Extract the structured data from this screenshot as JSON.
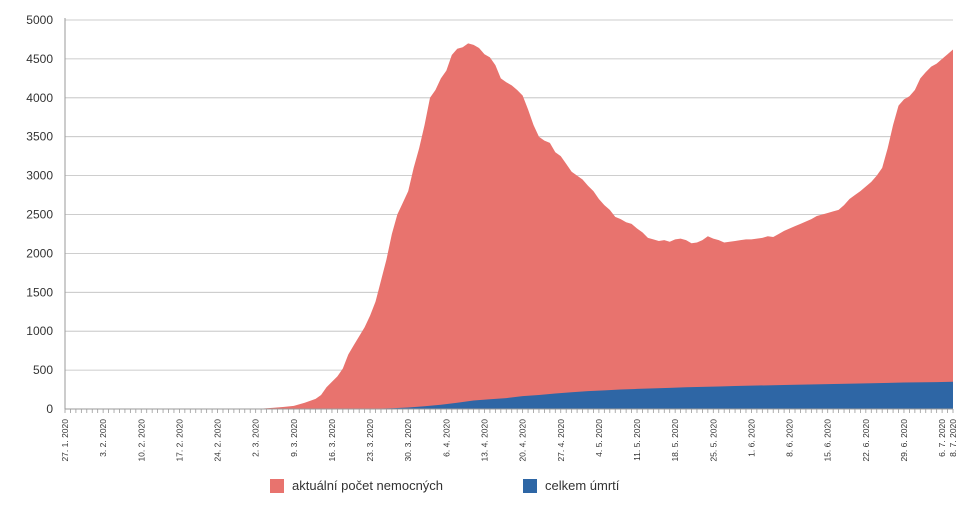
{
  "chart_data": {
    "type": "area",
    "stacked": false,
    "title": "",
    "xlabel": "",
    "ylabel": "",
    "ylim": [
      0,
      5000
    ],
    "y_ticks": [
      0,
      500,
      1000,
      1500,
      2000,
      2500,
      3000,
      3500,
      4000,
      4500,
      5000
    ],
    "grid": "horizontal",
    "legend_position": "bottom-center",
    "x_date_range": [
      "27.1.2020",
      "8.7.2020"
    ],
    "x_tick_labels": [
      "27. 1. 2020",
      "3. 2. 2020",
      "10. 2. 2020",
      "17. 2. 2020",
      "24. 2. 2020",
      "2. 3. 2020",
      "9. 3. 2020",
      "16. 3. 2020",
      "23. 3. 2020",
      "30. 3. 2020",
      "6. 4. 2020",
      "13. 4. 2020",
      "20. 4. 2020",
      "27. 4. 2020",
      "4. 5. 2020",
      "11. 5. 2020",
      "18. 5. 2020",
      "25. 5. 2020",
      "1. 6. 2020",
      "8. 6. 2020",
      "15. 6. 2020",
      "22. 6. 2020",
      "29. 6. 2020",
      "6. 7. 2020",
      "8. 7. 2020"
    ],
    "series": [
      {
        "name": "aktuální počet nemocných",
        "color": "#e8736e",
        "points": [
          [
            "27.1.2020",
            0
          ],
          [
            "1.3.2020",
            0
          ],
          [
            "3.3.2020",
            5
          ],
          [
            "5.3.2020",
            15
          ],
          [
            "7.3.2020",
            25
          ],
          [
            "9.3.2020",
            40
          ],
          [
            "11.3.2020",
            80
          ],
          [
            "13.3.2020",
            130
          ],
          [
            "14.3.2020",
            180
          ],
          [
            "15.3.2020",
            280
          ],
          [
            "17.3.2020",
            420
          ],
          [
            "18.3.2020",
            520
          ],
          [
            "19.3.2020",
            700
          ],
          [
            "20.3.2020",
            820
          ],
          [
            "22.3.2020",
            1050
          ],
          [
            "23.3.2020",
            1200
          ],
          [
            "24.3.2020",
            1380
          ],
          [
            "25.3.2020",
            1650
          ],
          [
            "26.3.2020",
            1920
          ],
          [
            "27.3.2020",
            2250
          ],
          [
            "28.3.2020",
            2500
          ],
          [
            "29.3.2020",
            2650
          ],
          [
            "30.3.2020",
            2800
          ],
          [
            "31.3.2020",
            3100
          ],
          [
            "1.4.2020",
            3350
          ],
          [
            "2.4.2020",
            3650
          ],
          [
            "3.4.2020",
            4000
          ],
          [
            "4.4.2020",
            4100
          ],
          [
            "5.4.2020",
            4250
          ],
          [
            "6.4.2020",
            4350
          ],
          [
            "7.4.2020",
            4550
          ],
          [
            "8.4.2020",
            4630
          ],
          [
            "9.4.2020",
            4650
          ],
          [
            "10.4.2020",
            4700
          ],
          [
            "11.4.2020",
            4680
          ],
          [
            "12.4.2020",
            4640
          ],
          [
            "13.4.2020",
            4560
          ],
          [
            "14.4.2020",
            4520
          ],
          [
            "15.4.2020",
            4420
          ],
          [
            "16.4.2020",
            4250
          ],
          [
            "17.4.2020",
            4200
          ],
          [
            "18.4.2020",
            4160
          ],
          [
            "19.4.2020",
            4100
          ],
          [
            "20.4.2020",
            4030
          ],
          [
            "21.4.2020",
            3850
          ],
          [
            "22.4.2020",
            3650
          ],
          [
            "23.4.2020",
            3500
          ],
          [
            "24.4.2020",
            3450
          ],
          [
            "25.4.2020",
            3420
          ],
          [
            "26.4.2020",
            3300
          ],
          [
            "27.4.2020",
            3250
          ],
          [
            "28.4.2020",
            3150
          ],
          [
            "29.4.2020",
            3050
          ],
          [
            "30.4.2020",
            3000
          ],
          [
            "1.5.2020",
            2950
          ],
          [
            "2.5.2020",
            2870
          ],
          [
            "3.5.2020",
            2800
          ],
          [
            "4.5.2020",
            2700
          ],
          [
            "5.5.2020",
            2620
          ],
          [
            "6.5.2020",
            2560
          ],
          [
            "7.5.2020",
            2470
          ],
          [
            "8.5.2020",
            2440
          ],
          [
            "9.5.2020",
            2400
          ],
          [
            "10.5.2020",
            2380
          ],
          [
            "11.5.2020",
            2320
          ],
          [
            "12.5.2020",
            2270
          ],
          [
            "13.5.2020",
            2200
          ],
          [
            "14.5.2020",
            2180
          ],
          [
            "15.5.2020",
            2160
          ],
          [
            "16.5.2020",
            2170
          ],
          [
            "17.5.2020",
            2150
          ],
          [
            "18.5.2020",
            2180
          ],
          [
            "19.5.2020",
            2190
          ],
          [
            "20.5.2020",
            2170
          ],
          [
            "21.5.2020",
            2130
          ],
          [
            "22.5.2020",
            2140
          ],
          [
            "23.5.2020",
            2170
          ],
          [
            "24.5.2020",
            2220
          ],
          [
            "25.5.2020",
            2190
          ],
          [
            "26.5.2020",
            2170
          ],
          [
            "27.5.2020",
            2140
          ],
          [
            "28.5.2020",
            2150
          ],
          [
            "29.5.2020",
            2160
          ],
          [
            "30.5.2020",
            2170
          ],
          [
            "31.5.2020",
            2180
          ],
          [
            "1.6.2020",
            2180
          ],
          [
            "2.6.2020",
            2190
          ],
          [
            "3.6.2020",
            2200
          ],
          [
            "4.6.2020",
            2220
          ],
          [
            "5.6.2020",
            2210
          ],
          [
            "6.6.2020",
            2250
          ],
          [
            "7.6.2020",
            2290
          ],
          [
            "8.6.2020",
            2320
          ],
          [
            "9.6.2020",
            2350
          ],
          [
            "10.6.2020",
            2380
          ],
          [
            "11.6.2020",
            2410
          ],
          [
            "12.6.2020",
            2440
          ],
          [
            "13.6.2020",
            2480
          ],
          [
            "14.6.2020",
            2500
          ],
          [
            "15.6.2020",
            2520
          ],
          [
            "16.6.2020",
            2540
          ],
          [
            "17.6.2020",
            2560
          ],
          [
            "18.6.2020",
            2620
          ],
          [
            "19.6.2020",
            2700
          ],
          [
            "20.6.2020",
            2750
          ],
          [
            "21.6.2020",
            2800
          ],
          [
            "22.6.2020",
            2860
          ],
          [
            "23.6.2020",
            2920
          ],
          [
            "24.6.2020",
            3000
          ],
          [
            "25.6.2020",
            3100
          ],
          [
            "26.6.2020",
            3350
          ],
          [
            "27.6.2020",
            3650
          ],
          [
            "28.6.2020",
            3900
          ],
          [
            "29.6.2020",
            3980
          ],
          [
            "30.6.2020",
            4020
          ],
          [
            "1.7.2020",
            4100
          ],
          [
            "2.7.2020",
            4250
          ],
          [
            "3.7.2020",
            4330
          ],
          [
            "4.7.2020",
            4400
          ],
          [
            "5.7.2020",
            4440
          ],
          [
            "6.7.2020",
            4500
          ],
          [
            "7.7.2020",
            4560
          ],
          [
            "8.7.2020",
            4620
          ]
        ]
      },
      {
        "name": "celkem úmrtí",
        "color": "#2e66a5",
        "points": [
          [
            "27.1.2020",
            0
          ],
          [
            "21.3.2020",
            0
          ],
          [
            "24.3.2020",
            5
          ],
          [
            "27.3.2020",
            10
          ],
          [
            "30.3.2020",
            20
          ],
          [
            "2.4.2020",
            35
          ],
          [
            "5.4.2020",
            55
          ],
          [
            "8.4.2020",
            80
          ],
          [
            "11.4.2020",
            110
          ],
          [
            "14.4.2020",
            125
          ],
          [
            "17.4.2020",
            140
          ],
          [
            "20.4.2020",
            165
          ],
          [
            "23.4.2020",
            180
          ],
          [
            "26.4.2020",
            200
          ],
          [
            "29.4.2020",
            215
          ],
          [
            "2.5.2020",
            230
          ],
          [
            "5.5.2020",
            240
          ],
          [
            "8.5.2020",
            250
          ],
          [
            "11.5.2020",
            258
          ],
          [
            "14.5.2020",
            265
          ],
          [
            "17.5.2020",
            272
          ],
          [
            "20.5.2020",
            280
          ],
          [
            "23.5.2020",
            285
          ],
          [
            "26.5.2020",
            290
          ],
          [
            "29.5.2020",
            295
          ],
          [
            "1.6.2020",
            300
          ],
          [
            "8.6.2020",
            310
          ],
          [
            "15.6.2020",
            320
          ],
          [
            "22.6.2020",
            330
          ],
          [
            "29.6.2020",
            340
          ],
          [
            "5.7.2020",
            345
          ],
          [
            "8.7.2020",
            350
          ]
        ]
      }
    ]
  },
  "legend": {
    "items": [
      {
        "label": "aktuální počet nemocných",
        "color": "#e8736e"
      },
      {
        "label": "celkem úmrtí",
        "color": "#2e66a5"
      }
    ]
  }
}
